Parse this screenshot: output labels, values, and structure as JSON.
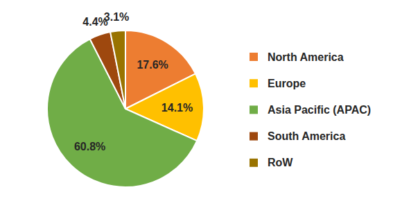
{
  "chart_data": {
    "type": "pie",
    "categories": [
      "North America",
      "Europe",
      "Asia Pacific (APAC)",
      "South America",
      "RoW"
    ],
    "values": [
      17.6,
      14.1,
      60.8,
      4.4,
      3.1
    ],
    "value_labels": [
      "17.6%",
      "14.1%",
      "60.8%",
      "4.4%",
      "3.1%"
    ],
    "colors": [
      "#ed7d31",
      "#ffc000",
      "#70ad47",
      "#9e480e",
      "#997300"
    ],
    "data_labels": true,
    "legend": "right"
  }
}
